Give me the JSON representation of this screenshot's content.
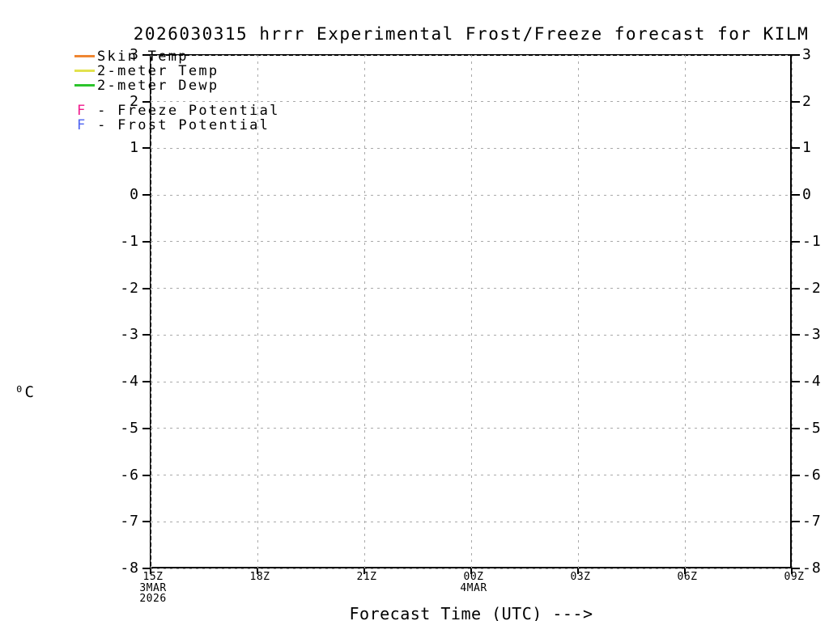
{
  "title": "2026030315 hrrr Experimental Frost/Freeze forecast for KILM",
  "colors": {
    "skin_temp": "#ef8632",
    "two_m_temp": "#e2e24e",
    "two_m_dewp": "#2cc42c",
    "freeze_potential": "#f01a8c",
    "frost_potential": "#4d62f0",
    "grid": "#a9a9a9",
    "frame": "#000000"
  },
  "legend": {
    "line_items": [
      {
        "id": "skin-temp",
        "label": "Skin Temp",
        "color_key": "skin_temp"
      },
      {
        "id": "2m-temp",
        "label": "2-meter Temp",
        "color_key": "two_m_temp"
      },
      {
        "id": "2m-dewp",
        "label": "2-meter Dewp",
        "color_key": "two_m_dewp"
      }
    ],
    "letter_items": [
      {
        "id": "freeze-potential",
        "letter": "F",
        "separator": " - ",
        "label": "Freeze Potential",
        "color_key": "freeze_potential"
      },
      {
        "id": "frost-potential",
        "letter": "F",
        "separator": " - ",
        "label": "Frost Potential",
        "color_key": "frost_potential"
      }
    ]
  },
  "chart_data": {
    "type": "line",
    "title": "2026030315 hrrr Experimental Frost/Freeze forecast for KILM",
    "xlabel": "Forecast Time (UTC) --->",
    "ylabel": "⁰C",
    "ylim": [
      -8,
      3
    ],
    "y_ticks": [
      "3",
      "2",
      "1",
      "0",
      "-1",
      "-2",
      "-3",
      "-4",
      "-5",
      "-6",
      "-7",
      "-8"
    ],
    "x_ticks": [
      {
        "label": "15Z",
        "sublabels": [
          "3MAR",
          "2026"
        ]
      },
      {
        "label": "18Z",
        "sublabels": []
      },
      {
        "label": "21Z",
        "sublabels": []
      },
      {
        "label": "00Z",
        "sublabels": [
          "4MAR"
        ]
      },
      {
        "label": "03Z",
        "sublabels": []
      },
      {
        "label": "06Z",
        "sublabels": []
      },
      {
        "label": "09Z",
        "sublabels": []
      }
    ],
    "grid": "dotted",
    "legend_position": "top-left",
    "series": [
      {
        "name": "Skin Temp",
        "color": "#ef8632",
        "values": []
      },
      {
        "name": "2-meter Temp",
        "color": "#e2e24e",
        "values": []
      },
      {
        "name": "2-meter Dewp",
        "color": "#2cc42c",
        "values": []
      },
      {
        "name": "Freeze Potential",
        "marker": "F",
        "color": "#f01a8c",
        "values": []
      },
      {
        "name": "Frost Potential",
        "marker": "F",
        "color": "#4d62f0",
        "values": []
      }
    ]
  }
}
